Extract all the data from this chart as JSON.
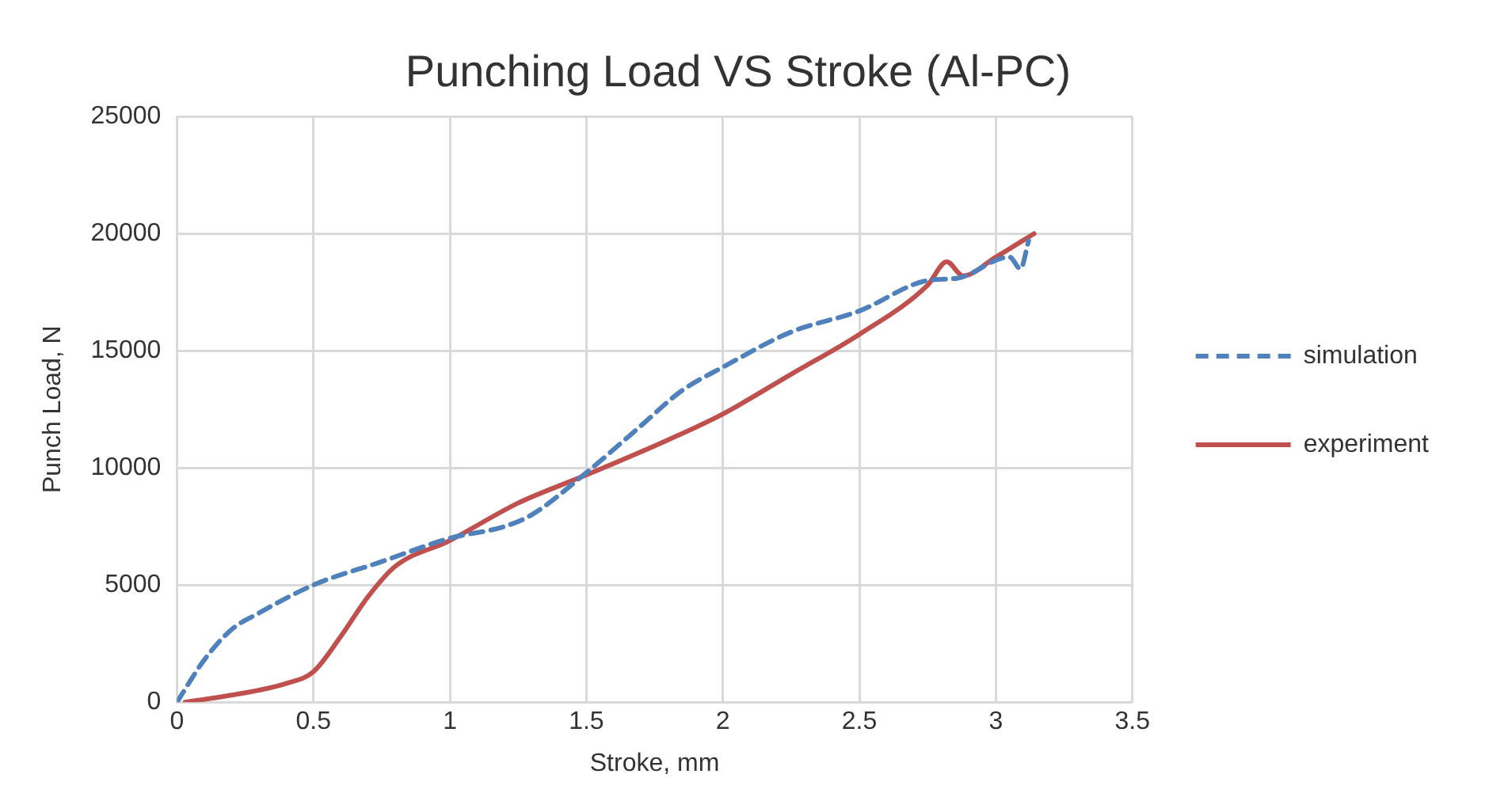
{
  "chart_data": {
    "type": "line",
    "title": "Punching Load VS Stroke (Al-PC)",
    "xlabel": "Stroke, mm",
    "ylabel": "Punch Load, N",
    "xlim": [
      0,
      3.5
    ],
    "xticks": [
      0,
      0.5,
      1,
      1.5,
      2,
      2.5,
      3,
      3.5
    ],
    "ylim": [
      0,
      25000
    ],
    "yticks": [
      0,
      5000,
      10000,
      15000,
      20000,
      25000
    ],
    "grid": true,
    "legend": "right",
    "marker": "none",
    "series": [
      {
        "name": "simulation",
        "color": "#4f81bd",
        "line_style": "dashed",
        "x": [
          0,
          0.1,
          0.2,
          0.3,
          0.5,
          0.75,
          1.0,
          1.2,
          1.3,
          1.5,
          1.7,
          1.85,
          2.0,
          2.25,
          2.5,
          2.75,
          2.86,
          3.05,
          3.09,
          3.12
        ],
        "values": [
          0,
          1800,
          3100,
          3800,
          5000,
          6000,
          7000,
          7500,
          8000,
          9800,
          11800,
          13300,
          14300,
          15800,
          16700,
          18000,
          18100,
          19000,
          18500,
          19700
        ]
      },
      {
        "name": "experiment",
        "color": "#c0504d",
        "line_style": "solid",
        "x": [
          0.03,
          0.2,
          0.4,
          0.5,
          0.6,
          0.7,
          0.8,
          1.0,
          1.25,
          1.5,
          1.8,
          2.0,
          2.25,
          2.5,
          2.75,
          2.82,
          2.88,
          3.0,
          3.14
        ],
        "values": [
          0,
          300,
          800,
          1300,
          2800,
          4500,
          5800,
          6900,
          8500,
          9700,
          11200,
          12300,
          14000,
          15700,
          17800,
          18800,
          18200,
          19000,
          20000
        ]
      }
    ]
  }
}
